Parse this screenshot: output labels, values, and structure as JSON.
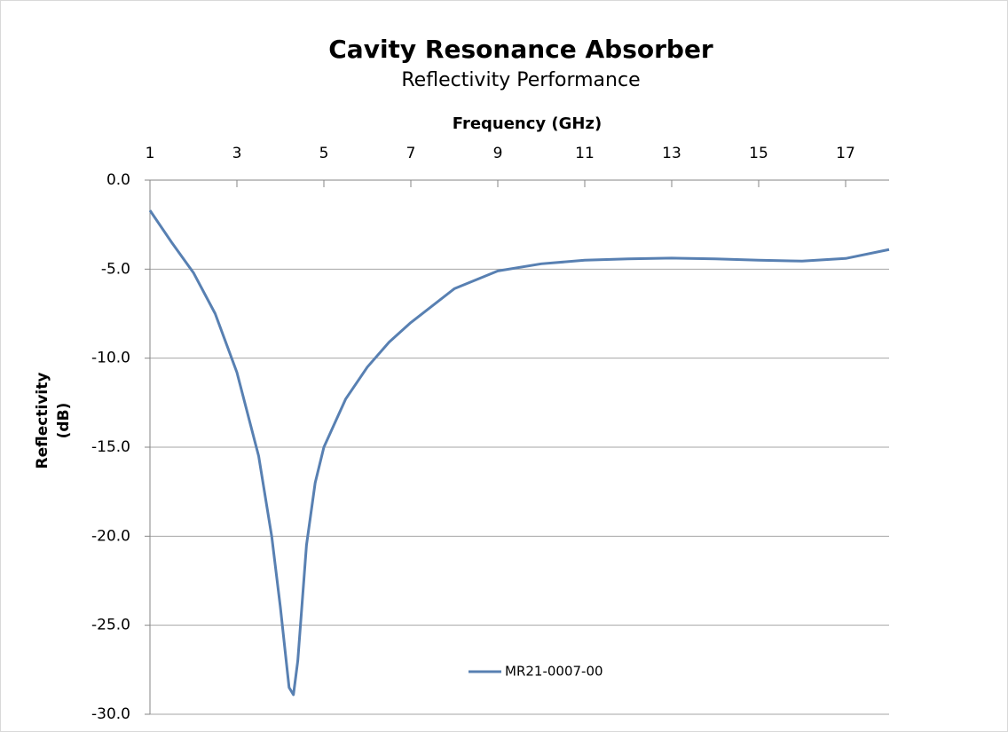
{
  "chart_data": {
    "type": "line",
    "title": "Cavity Resonance Absorber",
    "subtitle": "Reflectivity Performance",
    "x_label": "Frequency (GHz)",
    "y_label": "Reflectivity (dB)",
    "x": [
      1,
      1.5,
      2,
      2.5,
      3,
      3.5,
      3.8,
      4.0,
      4.2,
      4.3,
      4.4,
      4.6,
      4.8,
      5,
      5.5,
      6,
      6.5,
      7,
      8,
      9,
      10,
      11,
      12,
      13,
      14,
      15,
      16,
      17,
      18
    ],
    "series": [
      {
        "name": "MR21-0007-00",
        "color": "#5880b2",
        "values": [
          -1.7,
          -3.5,
          -5.2,
          -7.5,
          -10.8,
          -15.5,
          -20,
          -24,
          -28.5,
          -28.9,
          -27,
          -20.5,
          -17,
          -15,
          -12.3,
          -10.5,
          -9.1,
          -8,
          -6.1,
          -5.1,
          -4.7,
          -4.5,
          -4.42,
          -4.38,
          -4.42,
          -4.5,
          -4.55,
          -4.4,
          -3.9
        ]
      }
    ],
    "xlim": [
      1,
      18
    ],
    "xticks": [
      1,
      3,
      5,
      7,
      9,
      11,
      13,
      15,
      17
    ],
    "ylim": [
      -30,
      0
    ],
    "yticks": [
      {
        "value": 0,
        "label": "0.0"
      },
      {
        "value": -5,
        "label": "-5.0"
      },
      {
        "value": -10,
        "label": "-10.0"
      },
      {
        "value": -15,
        "label": "-15.0"
      },
      {
        "value": -20,
        "label": "-20.0"
      },
      {
        "value": -25,
        "label": "-25.0"
      },
      {
        "value": -30,
        "label": "-30.0"
      }
    ],
    "grid": true
  }
}
